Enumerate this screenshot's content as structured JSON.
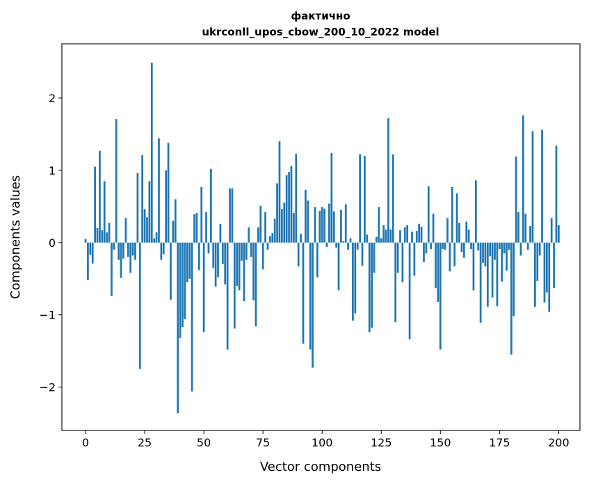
{
  "chart_data": {
    "type": "bar",
    "title_line1": "фактично",
    "title_line2": "ukrconll_upos_cbow_200_10_2022 model",
    "xlabel": "Vector components",
    "ylabel": "Components values",
    "xlim": [
      -10,
      209
    ],
    "ylim": [
      -2.6,
      2.75
    ],
    "xticks": [
      0,
      25,
      50,
      75,
      100,
      125,
      150,
      175,
      200
    ],
    "yticks": [
      -2,
      -1,
      0,
      1,
      2
    ],
    "ytick_labels": [
      "−2",
      "−1",
      "0",
      "1",
      "2"
    ],
    "bar_color": "#1f77b4",
    "values": [
      0.05,
      -0.52,
      -0.17,
      -0.29,
      1.05,
      0.2,
      1.27,
      0.17,
      0.85,
      0.14,
      0.27,
      -0.74,
      -0.1,
      1.71,
      -0.24,
      -0.49,
      -0.22,
      0.34,
      -0.2,
      -0.42,
      -0.18,
      -0.24,
      0.96,
      -1.75,
      1.21,
      0.46,
      0.35,
      0.85,
      2.49,
      0.06,
      0.14,
      1.44,
      -0.24,
      -0.16,
      1.0,
      1.38,
      -0.79,
      0.3,
      0.6,
      -2.36,
      -1.32,
      -1.17,
      -1.06,
      -0.55,
      -0.5,
      -2.06,
      0.39,
      0.41,
      -0.38,
      0.77,
      -1.24,
      0.42,
      -0.15,
      1.02,
      -0.35,
      -0.61,
      -0.48,
      0.26,
      -0.3,
      -0.58,
      -1.48,
      0.75,
      0.75,
      -1.19,
      -0.6,
      -0.66,
      -0.25,
      -0.81,
      -0.24,
      0.21,
      -0.2,
      -0.8,
      -1.16,
      0.21,
      0.51,
      -0.37,
      0.42,
      -0.1,
      0.09,
      0.13,
      0.33,
      0.82,
      1.4,
      0.46,
      0.55,
      0.93,
      0.98,
      1.06,
      0.41,
      1.23,
      -0.33,
      0.12,
      -1.4,
      0.73,
      0.58,
      -1.48,
      -1.73,
      0.49,
      -0.48,
      0.44,
      0.49,
      0.47,
      -0.06,
      0.54,
      1.24,
      0.43,
      -0.07,
      -0.66,
      0.45,
      0.02,
      0.53,
      -0.1,
      0.06,
      -1.08,
      -0.98,
      -0.1,
      1.22,
      -0.32,
      1.2,
      0.11,
      -1.24,
      -1.18,
      -0.42,
      0.08,
      0.49,
      0.06,
      0.24,
      0.18,
      1.72,
      0.18,
      1.22,
      -1.1,
      -0.42,
      0.17,
      -0.55,
      0.21,
      0.24,
      -1.34,
      0.15,
      -0.46,
      0.16,
      0.26,
      0.22,
      -0.27,
      -0.15,
      0.78,
      -0.09,
      0.4,
      -0.63,
      -0.82,
      -1.48,
      -0.09,
      -0.1,
      0.34,
      -0.4,
      0.77,
      -0.33,
      0.68,
      0.27,
      -0.13,
      -0.21,
      0.29,
      0.18,
      -0.09,
      -0.66,
      0.86,
      -0.11,
      -1.11,
      -0.28,
      -0.33,
      -0.89,
      -0.19,
      -0.76,
      -0.24,
      -0.88,
      -0.09,
      -0.54,
      -0.15,
      -0.39,
      -0.1,
      -1.55,
      -1.02,
      1.19,
      0.42,
      -0.18,
      1.76,
      0.4,
      -0.1,
      0.23,
      1.54,
      -0.89,
      -0.53,
      -0.18,
      1.56,
      -0.83,
      -0.69,
      -0.96,
      0.34,
      -0.63,
      1.34,
      0.24
    ]
  }
}
